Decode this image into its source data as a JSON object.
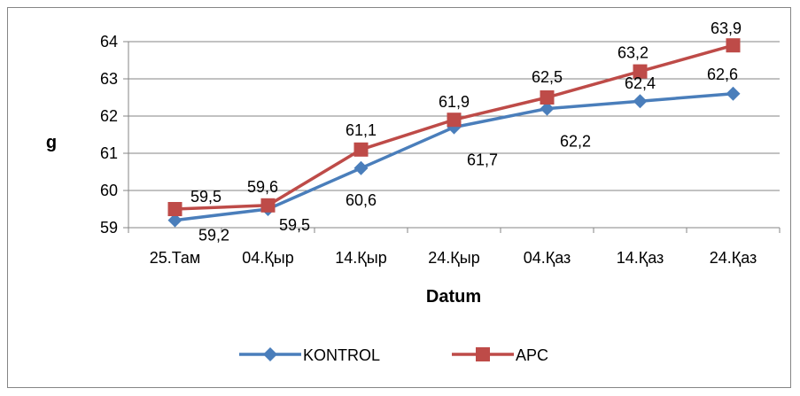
{
  "chart_data": {
    "type": "line",
    "categories": [
      "25.Там",
      "04.Қыр",
      "14.Қыр",
      "24.Қыр",
      "04.Қаз",
      "14.Қаз",
      "24.Қаз"
    ],
    "series": [
      {
        "name": "KONTROL",
        "color": "#4A7EBB",
        "marker": "diamond",
        "values": [
          59.2,
          59.5,
          60.6,
          61.7,
          62.2,
          62.4,
          62.6
        ],
        "labels": [
          "59,2",
          "59,5",
          "60,6",
          "61,7",
          "62,2",
          "62,4",
          "62,6"
        ]
      },
      {
        "name": "APC",
        "color": "#BE4B48",
        "marker": "square",
        "values": [
          59.5,
          59.6,
          61.1,
          61.9,
          62.5,
          63.2,
          63.9
        ],
        "labels": [
          "59,5",
          "59,6",
          "61,1",
          "61,9",
          "62,5",
          "63,2",
          "63,9"
        ]
      }
    ],
    "yticks": [
      "59",
      "60",
      "61",
      "62",
      "63",
      "64"
    ],
    "ylim": [
      59,
      64
    ],
    "xlabel": "Datum",
    "ylabel": "g",
    "grid": "horizontal",
    "legend": "bottom"
  }
}
